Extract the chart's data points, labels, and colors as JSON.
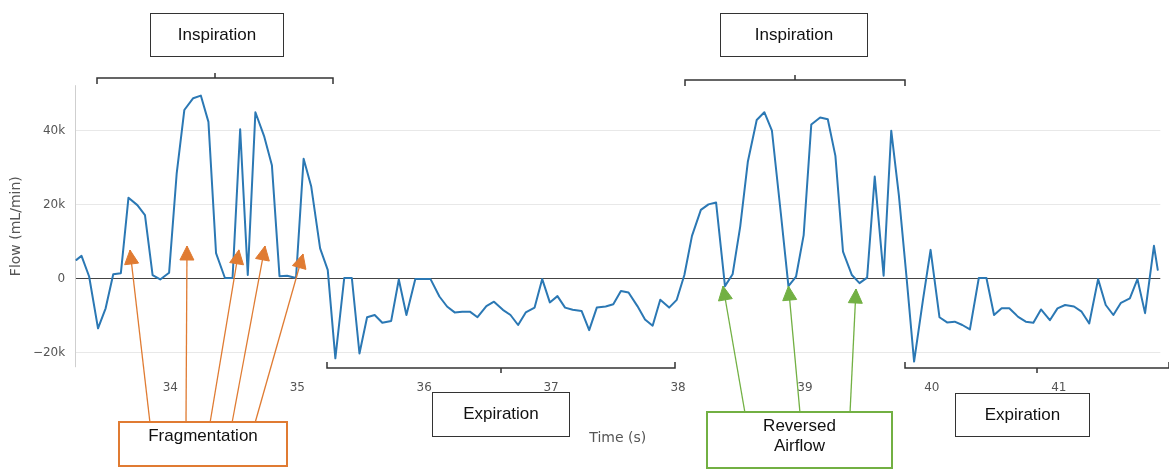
{
  "chart_data": {
    "type": "line",
    "xlabel": "Time (s)",
    "ylabel": "Flow (mL/min)",
    "xlim": [
      33.25,
      41.8
    ],
    "xticks": [
      34,
      35,
      36,
      37,
      38,
      39,
      40,
      41
    ],
    "ylim": [
      -24000,
      52000
    ],
    "yticks": [
      {
        "value": -20000,
        "label": "−20k"
      },
      0,
      {
        "value": 20000,
        "label": "20k"
      },
      {
        "value": 40000,
        "label": "40k"
      }
    ],
    "grid": "y",
    "marker": "none",
    "line_style": "solid",
    "annotations": [
      "Inspiration",
      "Inspiration",
      "Expiration",
      "Expiration",
      {
        "text": "Fragmentation",
        "x": 34.54,
        "y": 7600
      },
      {
        "text": "Reversed Airflow",
        "x": 38.87,
        "y": -2200
      }
    ],
    "series": [
      {
        "color": "#2b78b4",
        "x": [
          33.26,
          33.3,
          33.36,
          33.43,
          33.49,
          33.55,
          33.61,
          33.67,
          33.74,
          33.8,
          33.86,
          33.92,
          33.99,
          34.05,
          34.11,
          34.18,
          34.24,
          34.3,
          34.36,
          34.43,
          34.49,
          34.55,
          34.61,
          34.67,
          34.74,
          34.8,
          34.86,
          34.92,
          34.99,
          35.05,
          35.11,
          35.18,
          35.24,
          35.3,
          35.37,
          35.43,
          35.49,
          35.55,
          35.61,
          35.67,
          35.74,
          35.8,
          35.86,
          35.93,
          35.99,
          36.05,
          36.12,
          36.18,
          36.24,
          36.3,
          36.36,
          36.42,
          36.49,
          36.55,
          36.62,
          36.68,
          36.74,
          36.8,
          36.87,
          36.93,
          36.99,
          37.05,
          37.11,
          37.17,
          37.24,
          37.3,
          37.36,
          37.43,
          37.49,
          37.55,
          37.61,
          37.68,
          37.74,
          37.8,
          37.86,
          37.93,
          37.99,
          38.05,
          38.11,
          38.18,
          38.24,
          38.3,
          38.37,
          38.43,
          38.49,
          38.55,
          38.62,
          38.68,
          38.74,
          38.81,
          38.87,
          38.93,
          38.99,
          39.05,
          39.12,
          39.18,
          39.24,
          39.3,
          39.37,
          39.43,
          39.49,
          39.55,
          39.62,
          39.68,
          39.74,
          39.8,
          39.86,
          39.93,
          39.99,
          40.06,
          40.12,
          40.18,
          40.24,
          40.3,
          40.37,
          40.43,
          40.49,
          40.55,
          40.61,
          40.68,
          40.74,
          40.8,
          40.86,
          40.93,
          40.99,
          41.05,
          41.12,
          41.18,
          41.24,
          41.31,
          41.37,
          41.43,
          41.49,
          41.56,
          41.62,
          41.68,
          41.75,
          41.78
        ],
        "values": [
          4900,
          6000,
          400,
          -13600,
          -8200,
          1000,
          1300,
          21700,
          19700,
          17000,
          800,
          -400,
          1400,
          28300,
          45400,
          48600,
          49300,
          42200,
          6700,
          0,
          0,
          40200,
          800,
          44800,
          38200,
          30500,
          500,
          600,
          0,
          32200,
          24700,
          8000,
          2200,
          -21700,
          0,
          0,
          -20400,
          -10600,
          -10000,
          -12100,
          -11600,
          -400,
          -10000,
          -300,
          -300,
          -300,
          -5000,
          -7700,
          -9300,
          -9100,
          -9100,
          -10600,
          -7600,
          -6400,
          -8600,
          -10000,
          -12700,
          -9300,
          -8000,
          -300,
          -6600,
          -4900,
          -8000,
          -8600,
          -8900,
          -14100,
          -8000,
          -7700,
          -7100,
          -3500,
          -3900,
          -7600,
          -11200,
          -12900,
          -5900,
          -8000,
          -5900,
          800,
          11400,
          18400,
          19900,
          20400,
          -2200,
          1000,
          13900,
          31400,
          42700,
          44800,
          39800,
          17500,
          -2200,
          400,
          11600,
          41500,
          43400,
          42900,
          33000,
          7100,
          800,
          -1400,
          100,
          27400,
          600,
          39800,
          22400,
          400,
          -22600,
          -5900,
          7600,
          -10600,
          -12000,
          -11800,
          -12700,
          -13900,
          0,
          0,
          -10000,
          -8200,
          -8200,
          -10500,
          -11800,
          -12100,
          -8500,
          -11400,
          -8200,
          -7300,
          -7700,
          -9100,
          -12300,
          -300,
          -7300,
          -10000,
          -6700,
          -5500,
          -300,
          -9500,
          8700,
          2200
        ]
      }
    ]
  }
}
